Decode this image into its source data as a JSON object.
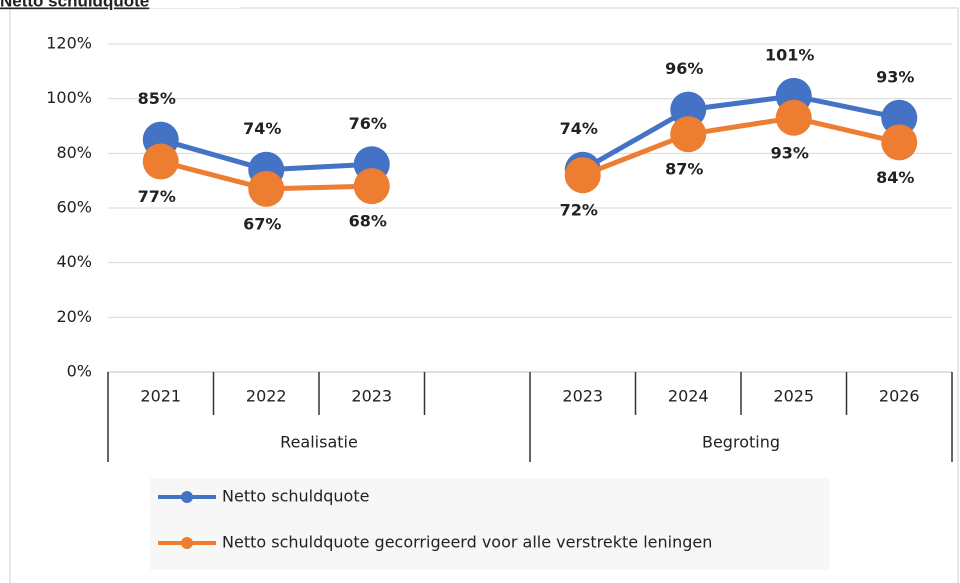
{
  "chart_data": {
    "type": "line",
    "title": "Netto schuldquote",
    "categories": [
      "2021",
      "2022",
      "2023",
      null,
      "2023",
      "2024",
      "2025",
      "2026"
    ],
    "category_groups": [
      "Realisatie",
      "Realisatie",
      "Realisatie",
      "Realisatie",
      "Begroting",
      "Begroting",
      "Begroting",
      "Begroting"
    ],
    "series": [
      {
        "name": "Netto schuldquote",
        "color": "#4472c4",
        "label_color": "#2f5597",
        "values": [
          85,
          74,
          76,
          null,
          74,
          96,
          101,
          93
        ],
        "value_labels": [
          "85%",
          "74%",
          "76%",
          null,
          "74%",
          "96%",
          "101%",
          "93%"
        ]
      },
      {
        "name": "Netto schuldquote gecorrigeerd voor alle verstrekte leningen",
        "color": "#ed7d31",
        "label_color": "#c55a11",
        "values": [
          77,
          67,
          68,
          null,
          72,
          87,
          93,
          84
        ],
        "value_labels": [
          "77%",
          "67%",
          "68%",
          null,
          "72%",
          "87%",
          "93%",
          "84%"
        ]
      }
    ],
    "ylim": [
      0,
      120
    ],
    "yticks": [
      {
        "value": 0,
        "label": "0%"
      },
      {
        "value": 20,
        "label": "20%"
      },
      {
        "value": 40,
        "label": "40%"
      },
      {
        "value": 60,
        "label": "60%"
      },
      {
        "value": 80,
        "label": "80%"
      },
      {
        "value": 100,
        "label": "100%"
      },
      {
        "value": 120,
        "label": "120%"
      }
    ],
    "grid": true
  }
}
